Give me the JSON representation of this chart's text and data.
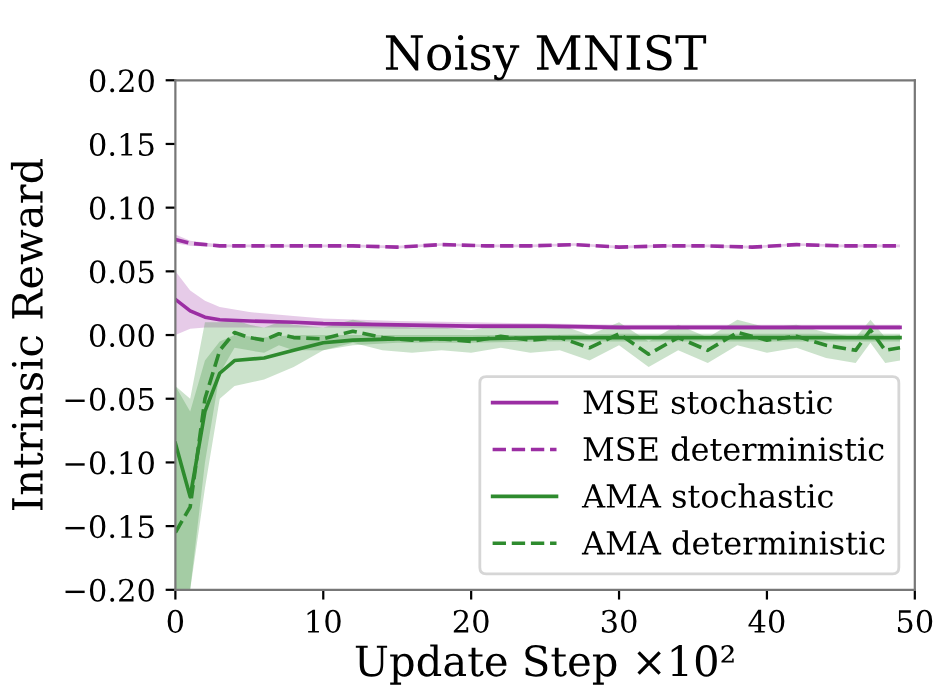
{
  "chart_data": {
    "type": "line",
    "title": "Noisy MNIST",
    "xlabel": "Update Step ×10²",
    "ylabel": "Intrinsic Reward",
    "xlim": [
      0,
      50
    ],
    "ylim": [
      -0.2,
      0.2
    ],
    "xticks": [
      0,
      10,
      20,
      30,
      40,
      50
    ],
    "yticks": [
      {
        "value": -0.2,
        "label": "−0.20"
      },
      {
        "value": -0.15,
        "label": "−0.15"
      },
      {
        "value": -0.1,
        "label": "−0.10"
      },
      {
        "value": -0.05,
        "label": "−0.05"
      },
      {
        "value": 0,
        "label": "0.00"
      },
      {
        "value": 0.05,
        "label": "0.05"
      },
      {
        "value": 0.1,
        "label": "0.10"
      },
      {
        "value": 0.15,
        "label": "0.15"
      },
      {
        "value": 0.2,
        "label": "0.20"
      }
    ],
    "grid": false,
    "legend": "bottom right",
    "series": [
      {
        "name": "MSE stochastic",
        "color": "#9b2ea3",
        "line_style": "solid",
        "x": [
          0,
          1,
          2,
          3,
          5,
          8,
          10,
          15,
          20,
          25,
          30,
          35,
          40,
          45,
          49
        ],
        "values": [
          0.028,
          0.019,
          0.014,
          0.012,
          0.011,
          0.01,
          0.009,
          0.008,
          0.007,
          0.007,
          0.006,
          0.006,
          0.006,
          0.006,
          0.006
        ],
        "lower": [
          0.0,
          0.005,
          0.006,
          0.006,
          0.006,
          0.006,
          0.006,
          0.005,
          0.005,
          0.005,
          0.004,
          0.004,
          0.004,
          0.004,
          0.004
        ],
        "upper": [
          0.05,
          0.035,
          0.027,
          0.022,
          0.018,
          0.015,
          0.013,
          0.011,
          0.01,
          0.009,
          0.008,
          0.008,
          0.008,
          0.008,
          0.008
        ]
      },
      {
        "name": "MSE deterministic",
        "color": "#9b2ea3",
        "line_style": "dashed",
        "x": [
          0,
          1,
          3,
          6,
          9,
          12,
          15,
          18,
          21,
          24,
          27,
          30,
          33,
          36,
          39,
          42,
          45,
          49
        ],
        "values": [
          0.075,
          0.072,
          0.07,
          0.07,
          0.07,
          0.07,
          0.069,
          0.071,
          0.07,
          0.07,
          0.071,
          0.069,
          0.07,
          0.07,
          0.069,
          0.071,
          0.07,
          0.07
        ],
        "lower": [
          0.072,
          0.07,
          0.069,
          0.069,
          0.069,
          0.069,
          0.068,
          0.07,
          0.069,
          0.069,
          0.07,
          0.068,
          0.069,
          0.069,
          0.068,
          0.07,
          0.069,
          0.069
        ],
        "upper": [
          0.079,
          0.074,
          0.071,
          0.071,
          0.071,
          0.071,
          0.07,
          0.072,
          0.071,
          0.071,
          0.072,
          0.07,
          0.071,
          0.071,
          0.07,
          0.072,
          0.071,
          0.071
        ]
      },
      {
        "name": "AMA stochastic",
        "color": "#2e8b2e",
        "line_style": "solid",
        "x": [
          0,
          1,
          2,
          3,
          4,
          6,
          8,
          10,
          12,
          15,
          20,
          25,
          30,
          35,
          40,
          45,
          49
        ],
        "values": [
          -0.085,
          -0.127,
          -0.06,
          -0.03,
          -0.02,
          -0.018,
          -0.012,
          -0.006,
          -0.004,
          -0.003,
          -0.003,
          -0.002,
          -0.002,
          -0.002,
          -0.002,
          -0.002,
          -0.002
        ],
        "lower": [
          -0.2,
          -0.2,
          -0.12,
          -0.05,
          -0.04,
          -0.035,
          -0.025,
          -0.012,
          -0.008,
          -0.006,
          -0.006,
          -0.005,
          -0.005,
          -0.005,
          -0.005,
          -0.005,
          -0.005
        ],
        "upper": [
          -0.04,
          -0.06,
          -0.02,
          -0.005,
          0.0,
          -0.002,
          0.0,
          0.0,
          0.0,
          0.0,
          0.0,
          0.0,
          0.001,
          0.001,
          0.001,
          0.001,
          0.001
        ]
      },
      {
        "name": "AMA deterministic",
        "color": "#2e8b2e",
        "line_style": "dashed",
        "x": [
          0,
          1,
          2,
          3,
          4,
          5,
          6,
          7,
          8,
          10,
          12,
          14,
          16,
          18,
          20,
          22,
          24,
          26,
          28,
          30,
          32,
          34,
          36,
          38,
          40,
          42,
          44,
          46,
          47,
          48,
          49
        ],
        "values": [
          -0.155,
          -0.135,
          -0.05,
          -0.012,
          0.002,
          -0.002,
          -0.004,
          0.001,
          -0.002,
          -0.003,
          0.003,
          -0.002,
          -0.004,
          -0.003,
          -0.005,
          -0.001,
          -0.004,
          -0.002,
          -0.01,
          0.001,
          -0.015,
          -0.002,
          -0.012,
          0.002,
          -0.004,
          -0.001,
          -0.008,
          -0.012,
          0.004,
          -0.012,
          -0.01
        ],
        "lower": [
          -0.2,
          -0.2,
          -0.1,
          -0.03,
          -0.01,
          -0.012,
          -0.014,
          -0.008,
          -0.012,
          -0.012,
          -0.006,
          -0.012,
          -0.014,
          -0.012,
          -0.014,
          -0.01,
          -0.014,
          -0.012,
          -0.02,
          -0.008,
          -0.025,
          -0.012,
          -0.022,
          -0.008,
          -0.014,
          -0.01,
          -0.018,
          -0.022,
          -0.006,
          -0.022,
          -0.02
        ],
        "upper": [
          -0.04,
          -0.05,
          0.01,
          0.01,
          0.012,
          0.008,
          0.006,
          0.01,
          0.008,
          0.006,
          0.012,
          0.008,
          0.006,
          0.006,
          0.004,
          0.008,
          0.006,
          0.008,
          0.0,
          0.01,
          -0.005,
          0.008,
          -0.002,
          0.012,
          0.006,
          0.008,
          0.002,
          -0.002,
          0.012,
          -0.002,
          0.0
        ]
      }
    ]
  }
}
